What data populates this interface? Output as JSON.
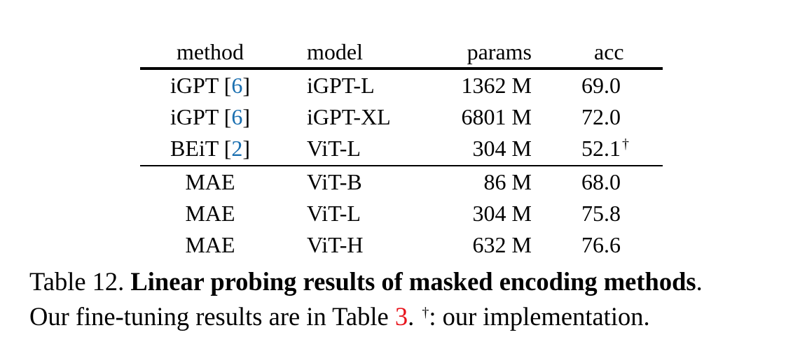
{
  "table": {
    "headers": {
      "method": "method",
      "model": "model",
      "params": "params",
      "acc": "acc"
    },
    "group1": [
      {
        "method": "iGPT [",
        "cite": "6",
        "close": "]",
        "model": "iGPT-L",
        "params": "1362 M",
        "acc": "69.0",
        "mark": ""
      },
      {
        "method": "iGPT [",
        "cite": "6",
        "close": "]",
        "model": "iGPT-XL",
        "params": "6801 M",
        "acc": "72.0",
        "mark": ""
      },
      {
        "method": "BEiT [",
        "cite": "2",
        "close": "]",
        "model": "ViT-L",
        "params": "304 M",
        "acc": "52.1",
        "mark": "†"
      }
    ],
    "group2": [
      {
        "method": "MAE",
        "model": "ViT-B",
        "params": "86 M",
        "acc": "68.0"
      },
      {
        "method": "MAE",
        "model": "ViT-L",
        "params": "304 M",
        "acc": "75.8"
      },
      {
        "method": "MAE",
        "model": "ViT-H",
        "params": "632 M",
        "acc": "76.6"
      }
    ]
  },
  "caption": {
    "label": "Table 12.",
    "bold": "Linear probing results of masked encoding methods",
    "period": ".",
    "line2_pre": "Our fine-tuning results are in Table ",
    "ref": "3",
    "line2_mid": ". ",
    "dagger": "†",
    "line2_post": ": our implementation."
  }
}
